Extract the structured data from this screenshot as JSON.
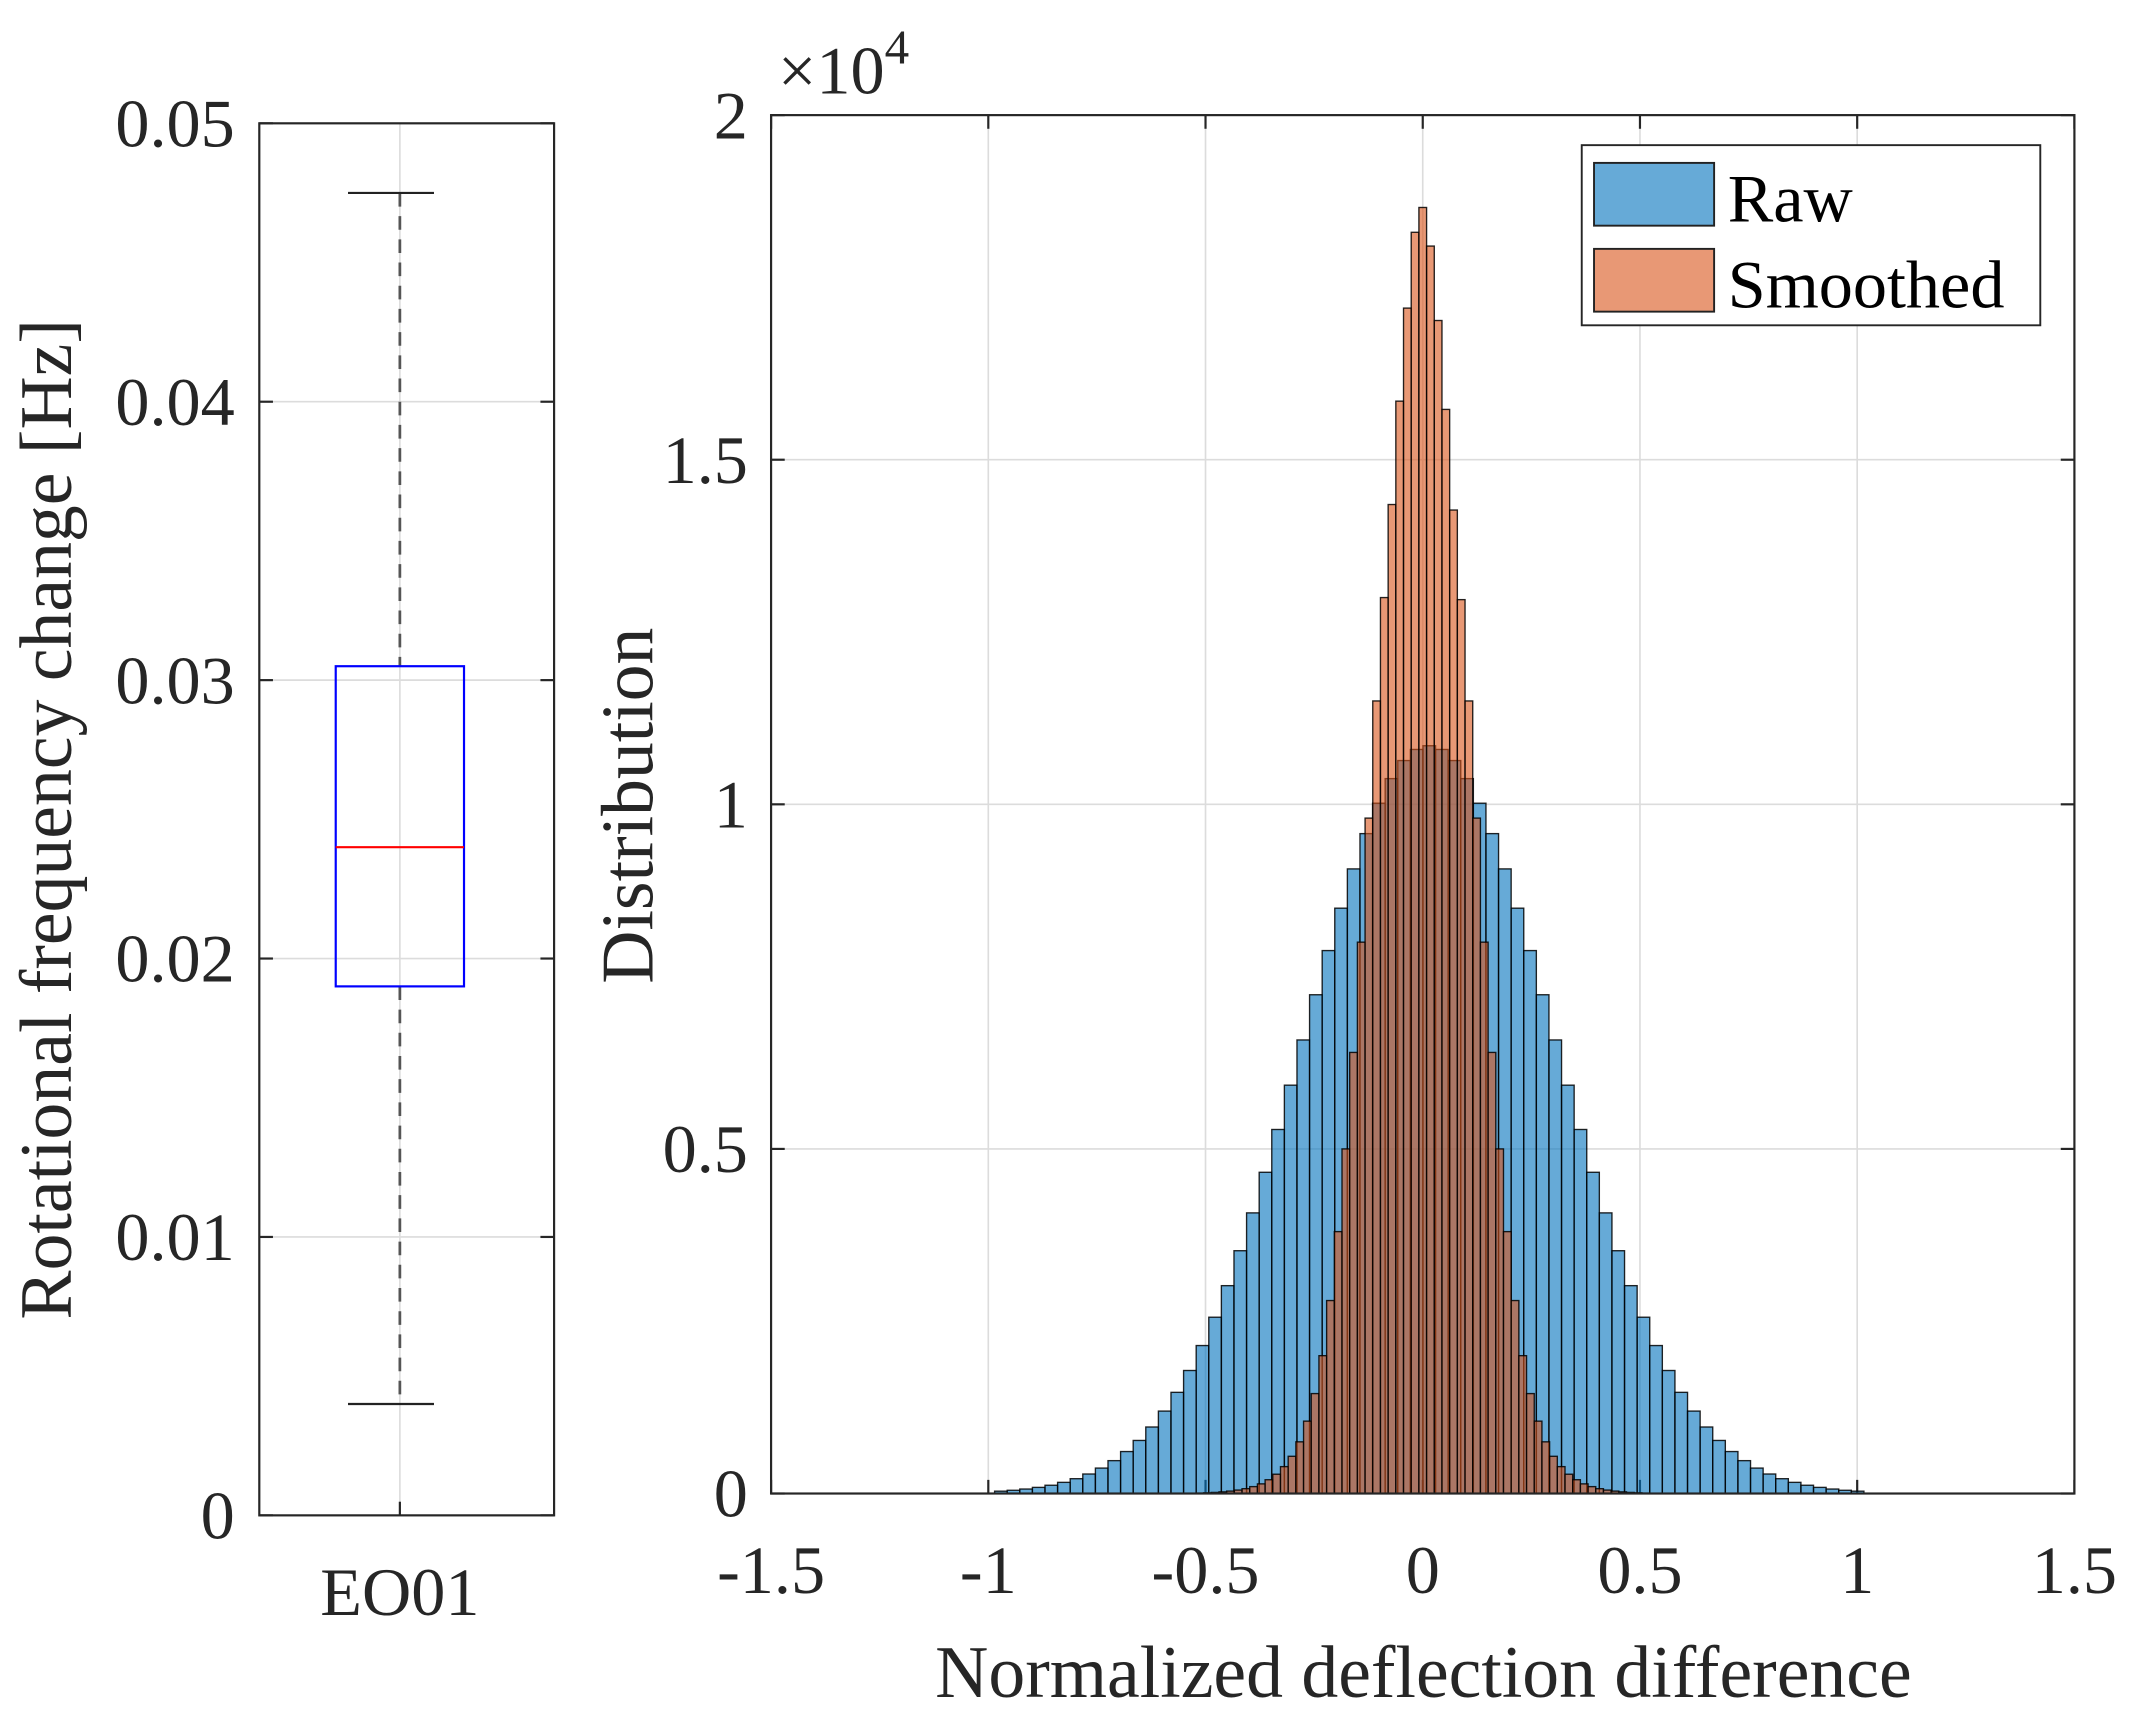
{
  "chart_data": [
    {
      "type": "box",
      "title": "",
      "xlabel": "",
      "ylabel": "Rotational frequency change [Hz]",
      "categories": [
        "EO01"
      ],
      "ylim": [
        0,
        0.05
      ],
      "yticks": [
        "0",
        "0.01",
        "0.02",
        "0.03",
        "0.04",
        "0.05"
      ],
      "ytick_values": [
        0,
        0.01,
        0.02,
        0.03,
        0.04,
        0.05
      ],
      "grid": true,
      "boxes": [
        {
          "name": "EO01",
          "whisker_low": 0.004,
          "q1": 0.019,
          "median": 0.024,
          "q3": 0.0305,
          "whisker_high": 0.0475
        }
      ],
      "colors": {
        "box": "#0000ff",
        "median": "#ff0000",
        "whisker": "#555555"
      }
    },
    {
      "type": "histogram",
      "title": "",
      "xlabel": "Normalized deflection difference",
      "ylabel": "Distribution",
      "y_exponent_label": "×10",
      "y_exponent": "4",
      "xlim": [
        -1.5,
        1.5
      ],
      "ylim": [
        0,
        20000
      ],
      "xticks": [
        "-1.5",
        "-1",
        "-0.5",
        "0",
        "0.5",
        "1",
        "1.5"
      ],
      "xtick_values": [
        -1.5,
        -1,
        -0.5,
        0,
        0.5,
        1,
        1.5
      ],
      "yticks": [
        "0",
        "0.5",
        "1",
        "1.5",
        "2"
      ],
      "ytick_values": [
        0,
        5000,
        10000,
        15000,
        20000
      ],
      "grid": true,
      "legend": {
        "placement": "top-right",
        "entries": [
          "Raw",
          "Smoothed"
        ]
      },
      "series": [
        {
          "name": "Raw",
          "color": "#0072BD",
          "alpha": 0.6,
          "first_bin_center": -0.971,
          "bin_width": 0.029,
          "counts": [
            34,
            47,
            65,
            89,
            120,
            162,
            215,
            283,
            369,
            477,
            609,
            770,
            965,
            1196,
            1468,
            1785,
            2147,
            2558,
            3016,
            3523,
            4072,
            4661,
            5282,
            5925,
            6581,
            7237,
            7878,
            8493,
            9063,
            9575,
            10016,
            10373,
            10635,
            10796,
            10850,
            10796,
            10635,
            10373,
            10016,
            9575,
            9063,
            8493,
            7878,
            7237,
            6581,
            5925,
            5282,
            4661,
            4072,
            3523,
            3016,
            2558,
            2147,
            1785,
            1468,
            1196,
            965,
            770,
            609,
            477,
            369,
            283,
            215,
            162,
            120,
            89,
            65,
            47,
            34
          ]
        },
        {
          "name": "Smoothed",
          "color": "#D95319",
          "alpha": 0.6,
          "first_bin_center": -0.531,
          "bin_width": 0.0177,
          "counts": [
            4,
            6,
            10,
            16,
            24,
            35,
            50,
            70,
            100,
            140,
            200,
            280,
            390,
            540,
            750,
            1050,
            1450,
            2000,
            2800,
            3800,
            5000,
            6400,
            8000,
            9800,
            11500,
            13000,
            14350,
            15850,
            17200,
            18300,
            18660,
            18100,
            17020,
            15730,
            14270,
            12970,
            11500,
            9800,
            8000,
            6400,
            5000,
            3800,
            2800,
            2000,
            1450,
            1050,
            750,
            540,
            390,
            280,
            200,
            140,
            100,
            70,
            50,
            35,
            24,
            16,
            10,
            6,
            4
          ]
        }
      ]
    }
  ]
}
